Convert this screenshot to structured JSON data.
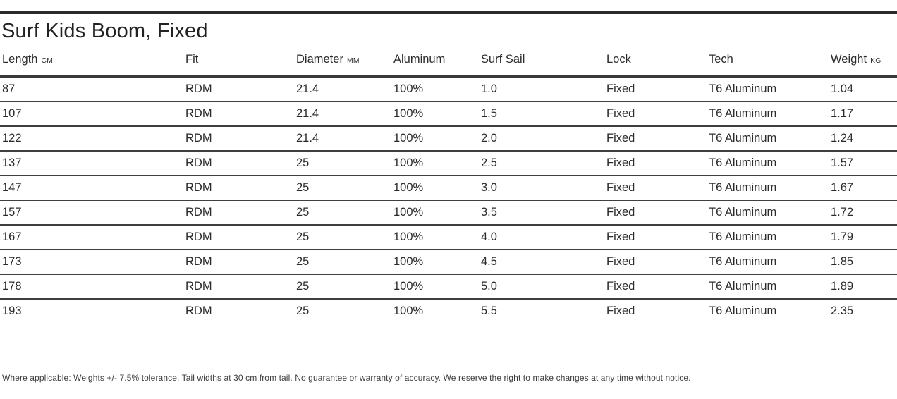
{
  "page": {
    "title": "Surf Kids Boom, Fixed",
    "footnote": "Where applicable: Weights +/- 7.5% tolerance. Tail widths at 30 cm from tail. No guarantee or warranty of accuracy. We reserve the right to make changes at any time without notice."
  },
  "table": {
    "columns": [
      {
        "label": "Length",
        "unit": "cm"
      },
      {
        "label": "Fit",
        "unit": ""
      },
      {
        "label": "Diameter",
        "unit": "mm"
      },
      {
        "label": "Aluminum",
        "unit": ""
      },
      {
        "label": "Surf Sail",
        "unit": ""
      },
      {
        "label": "Lock",
        "unit": ""
      },
      {
        "label": "Tech",
        "unit": ""
      },
      {
        "label": "Weight",
        "unit": "kg"
      }
    ],
    "rows": [
      [
        "87",
        "RDM",
        "21.4",
        "100%",
        "1.0",
        "Fixed",
        "T6 Aluminum",
        "1.04"
      ],
      [
        "107",
        "RDM",
        "21.4",
        "100%",
        "1.5",
        "Fixed",
        "T6 Aluminum",
        "1.17"
      ],
      [
        "122",
        "RDM",
        "21.4",
        "100%",
        "2.0",
        "Fixed",
        "T6 Aluminum",
        "1.24"
      ],
      [
        "137",
        "RDM",
        "25",
        "100%",
        "2.5",
        "Fixed",
        "T6 Aluminum",
        "1.57"
      ],
      [
        "147",
        "RDM",
        "25",
        "100%",
        "3.0",
        "Fixed",
        "T6 Aluminum",
        "1.67"
      ],
      [
        "157",
        "RDM",
        "25",
        "100%",
        "3.5",
        "Fixed",
        "T6 Aluminum",
        "1.72"
      ],
      [
        "167",
        "RDM",
        "25",
        "100%",
        "4.0",
        "Fixed",
        "T6 Aluminum",
        "1.79"
      ],
      [
        "173",
        "RDM",
        "25",
        "100%",
        "4.5",
        "Fixed",
        "T6 Aluminum",
        "1.85"
      ],
      [
        "178",
        "RDM",
        "25",
        "100%",
        "5.0",
        "Fixed",
        "T6 Aluminum",
        "1.89"
      ],
      [
        "193",
        "RDM",
        "25",
        "100%",
        "5.5",
        "Fixed",
        "T6 Aluminum",
        "2.35"
      ]
    ]
  },
  "colors": {
    "text": "#2b2b2b",
    "rule": "#3a3a3a",
    "top_bar": "#2b2b2b",
    "background": "#ffffff"
  }
}
